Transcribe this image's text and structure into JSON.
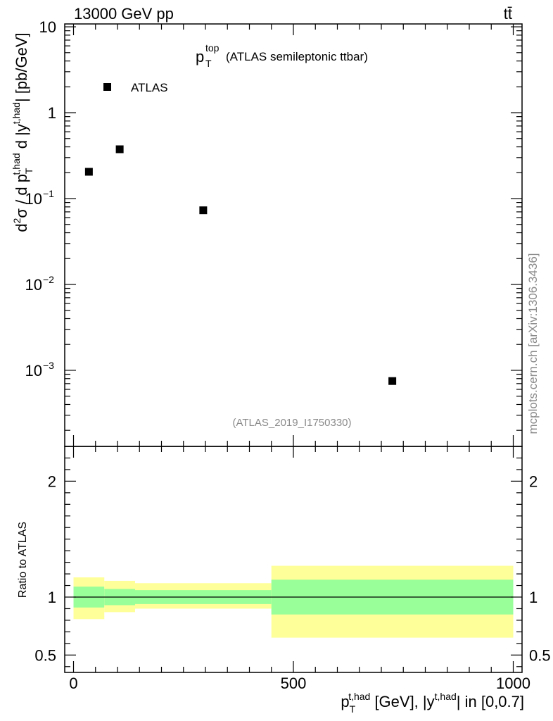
{
  "header": {
    "energy": "13000 GeV pp",
    "process": "tt̄",
    "watermark": "mcplots.cern.ch [arXiv:1306.3436]",
    "analysis_id": "(ATLAS_2019_I1750330)"
  },
  "chart_data": [
    {
      "type": "scatter",
      "title_main": "p",
      "title_sup": "top",
      "title_sub": "T",
      "title_rest": "(ATLAS semileptonic ttbar)",
      "ylabel_parts": {
        "a": "d",
        "a_sup": "2",
        "b": "σ  /  d p",
        "b_sub": "T",
        "b_sup": "t,had",
        "c": " d |y",
        "c_sup": "t,had",
        "d": "| [pb/GeV]"
      },
      "yscale": "log",
      "ylim": [
        0.00013,
        10.8
      ],
      "xlim": [
        -20,
        1020
      ],
      "y_ticks": [
        {
          "value": 10,
          "label": "10"
        },
        {
          "value": 1,
          "label": "1"
        },
        {
          "value": 0.1,
          "base": "10",
          "exp": "−1"
        },
        {
          "value": 0.01,
          "base": "10",
          "exp": "−2"
        },
        {
          "value": 0.001,
          "base": "10",
          "exp": "−3"
        }
      ],
      "legend": {
        "placement": "top-left",
        "entries": [
          "ATLAS"
        ]
      },
      "series": [
        {
          "name": "ATLAS",
          "color": "#000000",
          "marker": "square",
          "points": [
            {
              "x": 35,
              "y": 0.205
            },
            {
              "x": 105,
              "y": 0.375
            },
            {
              "x": 295,
              "y": 0.073
            },
            {
              "x": 725,
              "y": 0.00075
            }
          ]
        }
      ]
    },
    {
      "type": "area",
      "ylabel": "Ratio to ATLAS",
      "xlabel_parts": {
        "a": "p",
        "a_sub": "T",
        "a_sup": "t,had",
        "b": " [GeV], |y",
        "b_sup": "t,had",
        "c": "| in [0,0.7]"
      },
      "xlim": [
        -20,
        1020
      ],
      "ylim": [
        0.35,
        2.3
      ],
      "x_ticks": [
        {
          "value": 0,
          "label": "0"
        },
        {
          "value": 500,
          "label": "500"
        },
        {
          "value": 1000,
          "label": "1000"
        }
      ],
      "y_ticks": [
        {
          "value": 0.5,
          "label": "0.5"
        },
        {
          "value": 1,
          "label": "1"
        },
        {
          "value": 2,
          "label": "2"
        }
      ],
      "reference_line": 1.0,
      "bands": [
        {
          "x0": 0,
          "x1": 70,
          "inner": [
            0.91,
            1.09
          ],
          "outer": [
            0.81,
            1.17
          ]
        },
        {
          "x0": 70,
          "x1": 140,
          "inner": [
            0.93,
            1.07
          ],
          "outer": [
            0.87,
            1.14
          ]
        },
        {
          "x0": 140,
          "x1": 450,
          "inner": [
            0.94,
            1.06
          ],
          "outer": [
            0.9,
            1.12
          ]
        },
        {
          "x0": 450,
          "x1": 1000,
          "inner": [
            0.85,
            1.15
          ],
          "outer": [
            0.65,
            1.27
          ]
        }
      ],
      "colors": {
        "inner": "#99ff99",
        "outer": "#ffff99"
      }
    }
  ]
}
